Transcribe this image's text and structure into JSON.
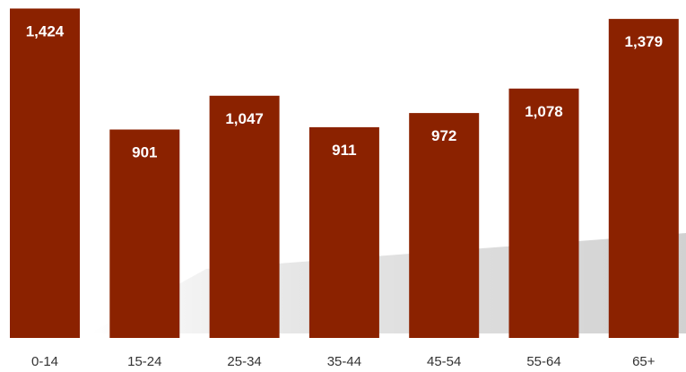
{
  "chart_data": {
    "type": "bar",
    "title": "",
    "xlabel": "",
    "ylabel": "",
    "categories": [
      "0-14",
      "15-24",
      "25-34",
      "35-44",
      "45-54",
      "55-64",
      "65+"
    ],
    "values": [
      1424,
      901,
      1047,
      911,
      972,
      1078,
      1379
    ],
    "value_labels": [
      "1,424",
      "901",
      "1,047",
      "911",
      "972",
      "1,078",
      "1,379"
    ],
    "ylim": [
      0,
      1500
    ],
    "grid": false,
    "legend": "none",
    "colors": {
      "bar": "#8B2200",
      "bar_label": "#ffffff",
      "tick_label": "#333333"
    }
  }
}
